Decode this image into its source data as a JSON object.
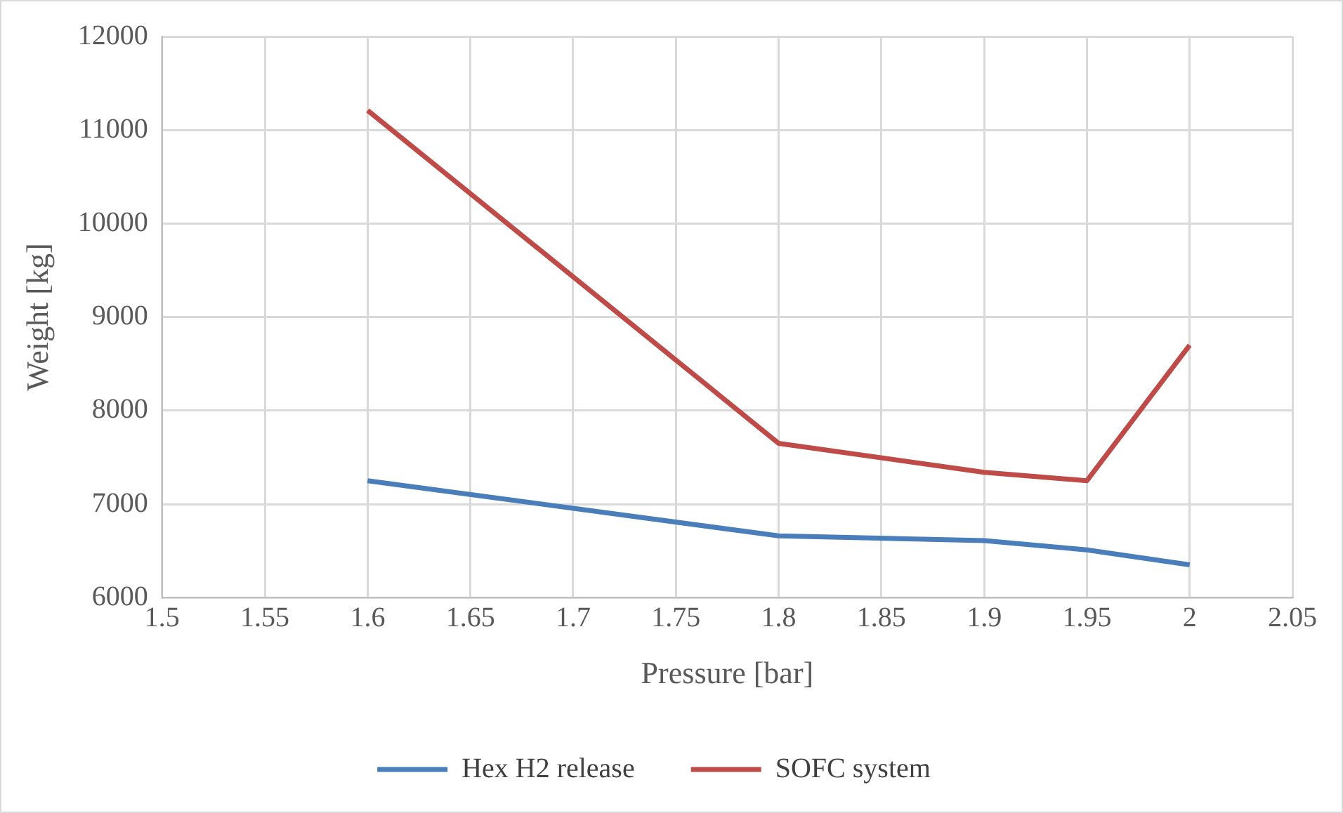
{
  "chart_data": {
    "type": "line",
    "xlabel": "Pressure [bar]",
    "ylabel": "Weight [kg]",
    "x": [
      1.6,
      1.8,
      1.9,
      1.95,
      2
    ],
    "series": [
      {
        "name": "Hex H2 release",
        "color": "#4a7ebb",
        "values": [
          7250,
          6660,
          6610,
          6510,
          6350
        ]
      },
      {
        "name": "SOFC system",
        "color": "#be4b48",
        "values": [
          11210,
          7650,
          7340,
          7250,
          8700
        ]
      }
    ],
    "xlim": [
      1.5,
      2.05
    ],
    "xticks": [
      1.5,
      1.55,
      1.6,
      1.65,
      1.7,
      1.75,
      1.8,
      1.85,
      1.9,
      1.95,
      2,
      2.05
    ],
    "ylim": [
      6000,
      12000
    ],
    "yticks": [
      6000,
      7000,
      8000,
      9000,
      10000,
      11000,
      12000
    ],
    "grid": true,
    "legend": "bottom",
    "marker": "none",
    "line_style": "solid"
  }
}
